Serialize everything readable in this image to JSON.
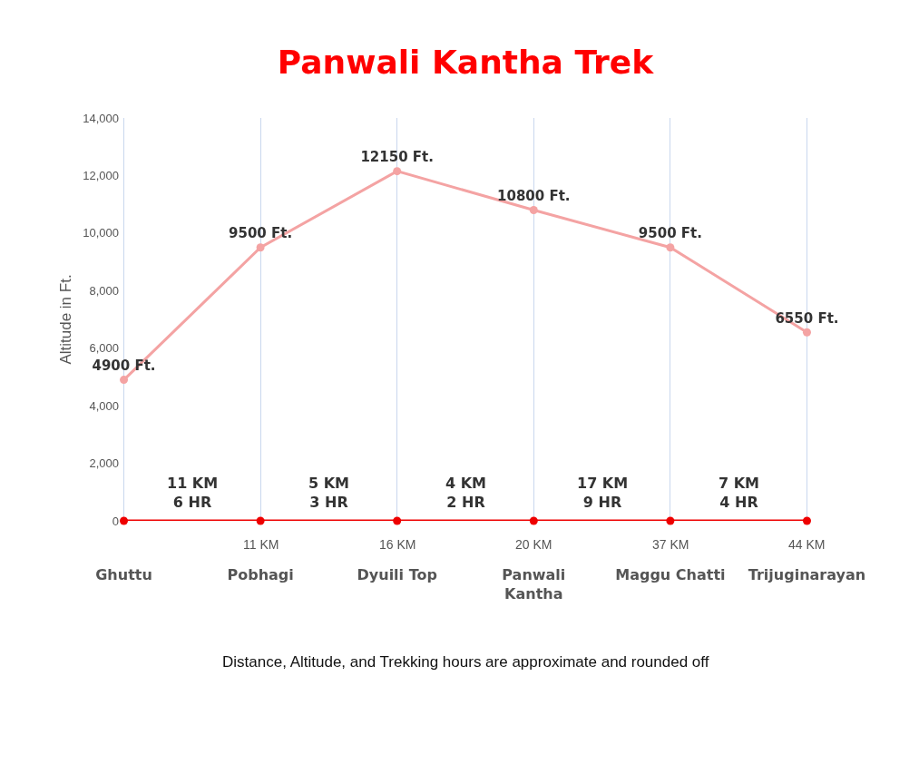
{
  "chart_data": {
    "type": "line",
    "title": "Panwali Kantha Trek",
    "ylabel": "Altitude in Ft.",
    "categories": [
      "Ghuttu",
      "Pobhagi",
      "Dyuili Top",
      "Panwali Kantha",
      "Maggu Chatti",
      "Trijuginarayan"
    ],
    "series": [
      {
        "color": "#f4a3a3",
        "values": [
          4900,
          9500,
          12150,
          10800,
          9500,
          6550
        ],
        "value_labels": [
          "4900 Ft.",
          "9500 Ft.",
          "12150 Ft.",
          "10800 Ft.",
          "9500 Ft.",
          "6550 Ft."
        ]
      },
      {
        "color": "#ee0000",
        "values": [
          0,
          0,
          0,
          0,
          0,
          0
        ]
      }
    ],
    "ylim": [
      0,
      14000
    ],
    "yticks": [
      0,
      {
        "value": 2000,
        "label": "2,000"
      },
      {
        "value": 4000,
        "label": "4,000"
      },
      {
        "value": 6000,
        "label": "6,000"
      },
      {
        "value": 8000,
        "label": "8,000"
      },
      {
        "value": 10000,
        "label": "10,000"
      },
      {
        "value": 12000,
        "label": "12,000"
      },
      {
        "value": 14000,
        "label": "14,000"
      }
    ],
    "grid": "x",
    "marker": "circle",
    "line_style": "solid",
    "annotations": [
      "11 KM",
      "16 KM",
      "20 KM",
      "37 KM",
      "44 KM",
      "11 KM\n6 HR",
      "5 KM\n3 HR",
      "4 KM\n2 HR",
      "17 KM\n9 HR",
      "7 KM\n4 HR",
      "Distance, Altitude, and Trekking hours are approximate and rounded off"
    ]
  }
}
